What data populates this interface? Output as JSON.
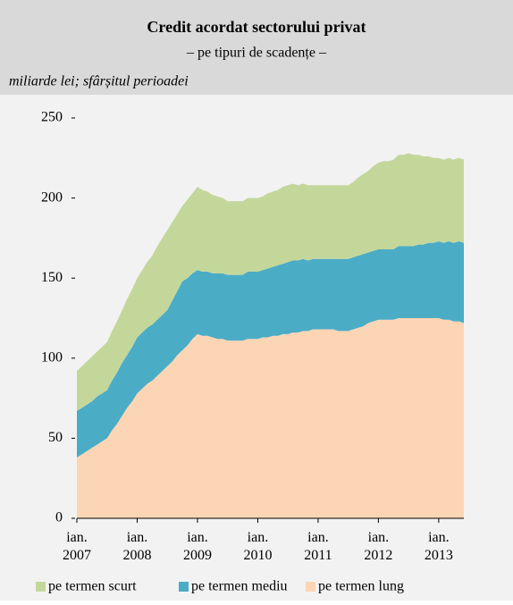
{
  "chart_data": {
    "type": "stacked_area",
    "title": "Credit acordat sectorului privat",
    "subtitle": "– pe tipuri de scadențe –",
    "unit_note": "miliarde lei; sfârșitul perioadei",
    "categories": [
      "ian. 2007",
      null,
      null,
      null,
      null,
      null,
      null,
      null,
      null,
      null,
      null,
      null,
      "ian. 2008",
      null,
      null,
      null,
      null,
      null,
      null,
      null,
      null,
      null,
      null,
      null,
      "ian. 2009",
      null,
      null,
      null,
      null,
      null,
      null,
      null,
      null,
      null,
      null,
      null,
      "ian. 2010",
      null,
      null,
      null,
      null,
      null,
      null,
      null,
      null,
      null,
      null,
      null,
      "ian. 2011",
      null,
      null,
      null,
      null,
      null,
      null,
      null,
      null,
      null,
      null,
      null,
      "ian. 2012",
      null,
      null,
      null,
      null,
      null,
      null,
      null,
      null,
      null,
      null,
      null,
      "ian. 2013",
      null,
      null,
      null,
      null,
      null
    ],
    "ylim": [
      0,
      250
    ],
    "yticks": [
      0,
      50,
      100,
      150,
      200,
      250
    ],
    "series": [
      {
        "name": "pe termen scurt",
        "color": "#c4d79b",
        "values": [
          25,
          26,
          27,
          28,
          28,
          29,
          30,
          31,
          32,
          33,
          35,
          36,
          37,
          39,
          41,
          43,
          46,
          48,
          50,
          49,
          48,
          47,
          49,
          50,
          52,
          51,
          50,
          49,
          48,
          47,
          46,
          46,
          46,
          46,
          46,
          46,
          46,
          46,
          47,
          47,
          47,
          48,
          48,
          48,
          47,
          47,
          47,
          46,
          46,
          46,
          46,
          46,
          46,
          46,
          46,
          47,
          49,
          50,
          51,
          53,
          54,
          55,
          55,
          56,
          57,
          57,
          58,
          57,
          56,
          55,
          54,
          53,
          52,
          52,
          52,
          52,
          52,
          52
        ]
      },
      {
        "name": "pe termen mediu",
        "color": "#4bacc6",
        "values": [
          29,
          29,
          29,
          29,
          30,
          30,
          30,
          31,
          32,
          33,
          33,
          34,
          35,
          35,
          35,
          35,
          35,
          35,
          35,
          38,
          40,
          43,
          42,
          41,
          40,
          40,
          40,
          40,
          41,
          41,
          41,
          41,
          41,
          41,
          42,
          42,
          42,
          42,
          43,
          43,
          44,
          44,
          45,
          45,
          45,
          45,
          44,
          44,
          44,
          44,
          44,
          44,
          45,
          45,
          45,
          45,
          45,
          45,
          44,
          44,
          44,
          44,
          44,
          44,
          45,
          45,
          45,
          45,
          46,
          46,
          47,
          47,
          48,
          48,
          49,
          49,
          50,
          50
        ]
      },
      {
        "name": "pe termen lung",
        "color": "#fcd5b5",
        "values": [
          38,
          40,
          42,
          44,
          46,
          48,
          50,
          55,
          59,
          64,
          69,
          73,
          78,
          81,
          84,
          86,
          89,
          92,
          95,
          98,
          102,
          105,
          108,
          112,
          115,
          114,
          114,
          113,
          112,
          112,
          111,
          111,
          111,
          111,
          112,
          112,
          112,
          113,
          113,
          114,
          114,
          115,
          115,
          116,
          116,
          117,
          117,
          118,
          118,
          118,
          118,
          118,
          117,
          117,
          117,
          118,
          119,
          120,
          122,
          123,
          124,
          124,
          124,
          124,
          125,
          125,
          125,
          125,
          125,
          125,
          125,
          125,
          125,
          124,
          124,
          123,
          123,
          122
        ]
      }
    ]
  }
}
